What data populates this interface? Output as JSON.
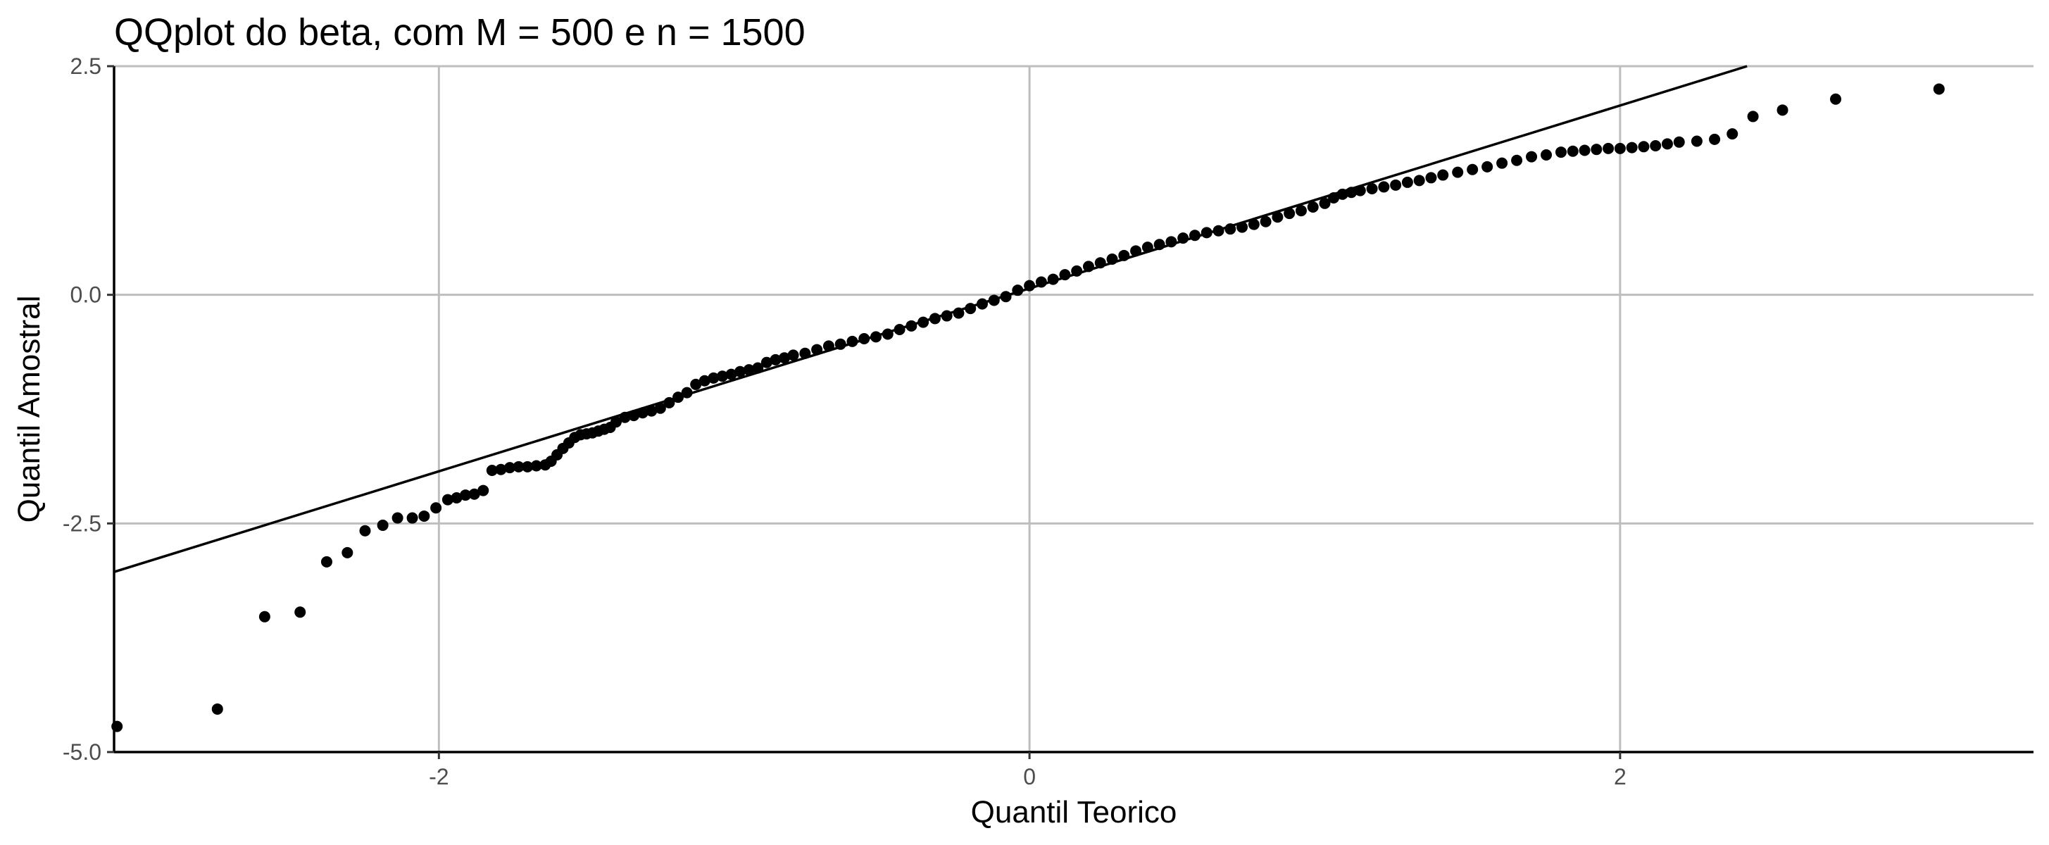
{
  "chart_data": {
    "type": "scatter",
    "title": "QQplot do beta, com M = 500 e n = 1500",
    "xlabel": "Quantil Teorico",
    "ylabel": "Quantil Amostral",
    "xlim": [
      -3.1,
      3.4
    ],
    "ylim": [
      -5.0,
      2.5
    ],
    "x_ticks": [
      -2,
      0,
      2
    ],
    "x_tick_labels": [
      "-2",
      "0",
      "2"
    ],
    "y_ticks": [
      -5.0,
      -2.5,
      0.0,
      2.5
    ],
    "y_tick_labels": [
      "-5.0",
      "-2.5",
      "0.0",
      "2.5"
    ],
    "grid": true,
    "reference_line": {
      "intercept": 0.07,
      "slope": 1.0
    },
    "points": [
      [
        -3.09,
        -4.72
      ],
      [
        -2.75,
        -4.53
      ],
      [
        -2.59,
        -3.52
      ],
      [
        -2.47,
        -3.47
      ],
      [
        -2.38,
        -2.92
      ],
      [
        -2.31,
        -2.82
      ],
      [
        -2.25,
        -2.58
      ],
      [
        -2.19,
        -2.52
      ],
      [
        -2.14,
        -2.44
      ],
      [
        -2.09,
        -2.44
      ],
      [
        -2.05,
        -2.42
      ],
      [
        -2.01,
        -2.33
      ],
      [
        -1.97,
        -2.24
      ],
      [
        -1.94,
        -2.22
      ],
      [
        -1.91,
        -2.19
      ],
      [
        -1.88,
        -2.18
      ],
      [
        -1.85,
        -2.14
      ],
      [
        -1.82,
        -1.92
      ],
      [
        -1.79,
        -1.91
      ],
      [
        -1.76,
        -1.89
      ],
      [
        -1.73,
        -1.88
      ],
      [
        -1.7,
        -1.88
      ],
      [
        -1.67,
        -1.87
      ],
      [
        -1.64,
        -1.86
      ],
      [
        -1.62,
        -1.82
      ],
      [
        -1.6,
        -1.75
      ],
      [
        -1.58,
        -1.68
      ],
      [
        -1.56,
        -1.62
      ],
      [
        -1.54,
        -1.56
      ],
      [
        -1.52,
        -1.53
      ],
      [
        -1.5,
        -1.52
      ],
      [
        -1.48,
        -1.51
      ],
      [
        -1.46,
        -1.49
      ],
      [
        -1.44,
        -1.47
      ],
      [
        -1.42,
        -1.45
      ],
      [
        -1.4,
        -1.39
      ],
      [
        -1.37,
        -1.34
      ],
      [
        -1.34,
        -1.32
      ],
      [
        -1.31,
        -1.29
      ],
      [
        -1.28,
        -1.27
      ],
      [
        -1.25,
        -1.24
      ],
      [
        -1.22,
        -1.18
      ],
      [
        -1.19,
        -1.12
      ],
      [
        -1.16,
        -1.07
      ],
      [
        -1.13,
        -0.98
      ],
      [
        -1.1,
        -0.94
      ],
      [
        -1.07,
        -0.91
      ],
      [
        -1.04,
        -0.89
      ],
      [
        -1.01,
        -0.87
      ],
      [
        -0.98,
        -0.84
      ],
      [
        -0.95,
        -0.82
      ],
      [
        -0.92,
        -0.8
      ],
      [
        -0.89,
        -0.74
      ],
      [
        -0.86,
        -0.71
      ],
      [
        -0.83,
        -0.69
      ],
      [
        -0.8,
        -0.66
      ],
      [
        -0.76,
        -0.64
      ],
      [
        -0.72,
        -0.6
      ],
      [
        -0.68,
        -0.56
      ],
      [
        -0.64,
        -0.54
      ],
      [
        -0.6,
        -0.51
      ],
      [
        -0.56,
        -0.48
      ],
      [
        -0.52,
        -0.46
      ],
      [
        -0.48,
        -0.43
      ],
      [
        -0.44,
        -0.38
      ],
      [
        -0.4,
        -0.34
      ],
      [
        -0.36,
        -0.3
      ],
      [
        -0.32,
        -0.26
      ],
      [
        -0.28,
        -0.23
      ],
      [
        -0.24,
        -0.2
      ],
      [
        -0.2,
        -0.15
      ],
      [
        -0.16,
        -0.1
      ],
      [
        -0.12,
        -0.06
      ],
      [
        -0.08,
        -0.02
      ],
      [
        -0.04,
        0.05
      ],
      [
        0.0,
        0.1
      ],
      [
        0.04,
        0.14
      ],
      [
        0.08,
        0.17
      ],
      [
        0.12,
        0.22
      ],
      [
        0.16,
        0.26
      ],
      [
        0.2,
        0.31
      ],
      [
        0.24,
        0.35
      ],
      [
        0.28,
        0.39
      ],
      [
        0.32,
        0.43
      ],
      [
        0.36,
        0.48
      ],
      [
        0.4,
        0.52
      ],
      [
        0.44,
        0.55
      ],
      [
        0.48,
        0.58
      ],
      [
        0.52,
        0.62
      ],
      [
        0.56,
        0.65
      ],
      [
        0.6,
        0.68
      ],
      [
        0.64,
        0.7
      ],
      [
        0.68,
        0.72
      ],
      [
        0.72,
        0.74
      ],
      [
        0.76,
        0.77
      ],
      [
        0.8,
        0.8
      ],
      [
        0.84,
        0.85
      ],
      [
        0.88,
        0.89
      ],
      [
        0.92,
        0.92
      ],
      [
        0.96,
        0.96
      ],
      [
        1.0,
        1.0
      ],
      [
        1.03,
        1.06
      ],
      [
        1.06,
        1.1
      ],
      [
        1.09,
        1.12
      ],
      [
        1.12,
        1.14
      ],
      [
        1.16,
        1.16
      ],
      [
        1.2,
        1.18
      ],
      [
        1.24,
        1.2
      ],
      [
        1.28,
        1.23
      ],
      [
        1.32,
        1.25
      ],
      [
        1.36,
        1.28
      ],
      [
        1.4,
        1.31
      ],
      [
        1.45,
        1.34
      ],
      [
        1.5,
        1.37
      ],
      [
        1.55,
        1.4
      ],
      [
        1.6,
        1.44
      ],
      [
        1.65,
        1.47
      ],
      [
        1.7,
        1.51
      ],
      [
        1.75,
        1.53
      ],
      [
        1.8,
        1.56
      ],
      [
        1.84,
        1.57
      ],
      [
        1.88,
        1.58
      ],
      [
        1.92,
        1.59
      ],
      [
        1.96,
        1.6
      ],
      [
        2.0,
        1.6
      ],
      [
        2.04,
        1.61
      ],
      [
        2.08,
        1.62
      ],
      [
        2.12,
        1.63
      ],
      [
        2.16,
        1.65
      ],
      [
        2.2,
        1.67
      ],
      [
        2.26,
        1.68
      ],
      [
        2.32,
        1.7
      ],
      [
        2.38,
        1.76
      ],
      [
        2.45,
        1.95
      ],
      [
        2.55,
        2.02
      ],
      [
        2.73,
        2.14
      ],
      [
        3.08,
        2.25
      ]
    ]
  }
}
